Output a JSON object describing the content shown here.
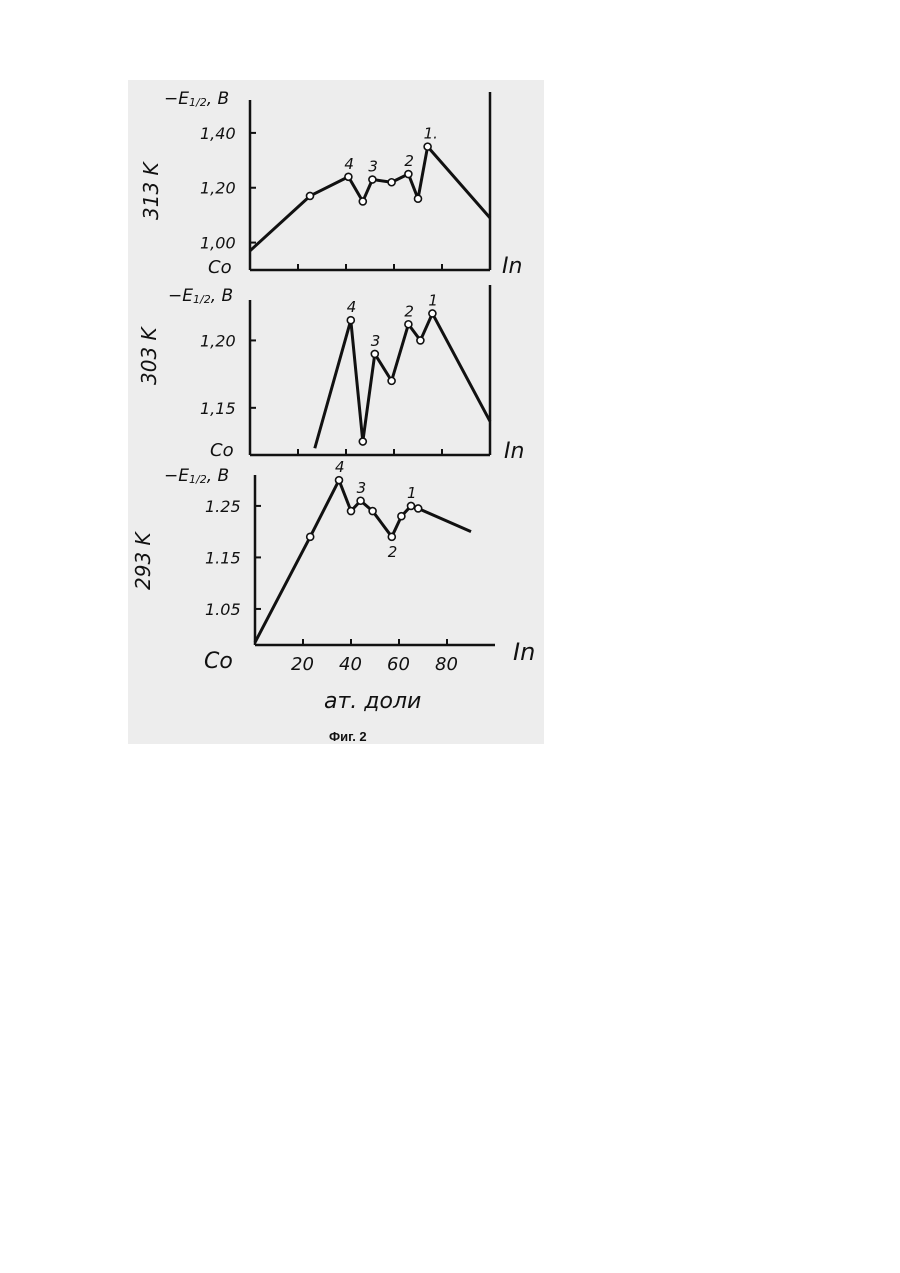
{
  "figure_caption": "Фиг. 2",
  "x_axis": {
    "label": "ат. доли",
    "left_end": "Co",
    "right_end": "In",
    "ticks": [
      "20",
      "40",
      "60",
      "80"
    ]
  },
  "chart_data": [
    {
      "type": "line",
      "temperature": "313 K",
      "ylabel": "-E1/2, B",
      "ylim": [
        0.9,
        1.52
      ],
      "xlim": [
        0,
        100
      ],
      "yticks": [
        1.0,
        1.2,
        1.4
      ],
      "ytick_labels": [
        "1,00",
        "1,20",
        "1,40"
      ],
      "x": [
        0,
        25,
        41,
        47,
        51,
        59,
        66,
        70,
        74,
        100
      ],
      "y": [
        0.97,
        1.17,
        1.24,
        1.15,
        1.23,
        1.22,
        1.25,
        1.16,
        1.35,
        1.09
      ],
      "point_labels": [
        {
          "x": 41,
          "text": "4"
        },
        {
          "x": 51,
          "text": "3"
        },
        {
          "x": 66,
          "text": "2"
        },
        {
          "x": 74,
          "text": "1."
        }
      ]
    },
    {
      "type": "line",
      "temperature": "303 K",
      "ylabel": "-E1/2, B",
      "ylim": [
        1.115,
        1.23
      ],
      "xlim": [
        0,
        100
      ],
      "yticks": [
        1.15,
        1.2
      ],
      "ytick_labels": [
        "1,15",
        "1,20"
      ],
      "x": [
        27,
        42,
        47,
        52,
        59,
        66,
        71,
        76,
        100
      ],
      "y": [
        1.12,
        1.215,
        1.125,
        1.19,
        1.17,
        1.212,
        1.2,
        1.22,
        1.14
      ],
      "point_labels": [
        {
          "x": 42,
          "text": "4"
        },
        {
          "x": 52,
          "text": "3"
        },
        {
          "x": 66,
          "text": "2"
        },
        {
          "x": 76,
          "text": "1"
        }
      ]
    },
    {
      "type": "line",
      "temperature": "293 K",
      "ylabel": "-E1/2, B",
      "ylim": [
        0.98,
        1.31
      ],
      "xlim": [
        0,
        100
      ],
      "yticks": [
        1.05,
        1.15,
        1.25
      ],
      "ytick_labels": [
        "1.05",
        "1.15",
        "1.25"
      ],
      "x": [
        0,
        23,
        35,
        40,
        44,
        49,
        57,
        61,
        65,
        68,
        90
      ],
      "y": [
        0.985,
        1.19,
        1.3,
        1.24,
        1.26,
        1.24,
        1.19,
        1.23,
        1.25,
        1.245,
        1.2
      ],
      "point_labels": [
        {
          "x": 35,
          "text": "4"
        },
        {
          "x": 44,
          "text": "3"
        },
        {
          "x": 57,
          "text": "2"
        },
        {
          "x": 65,
          "text": "1"
        }
      ]
    }
  ]
}
